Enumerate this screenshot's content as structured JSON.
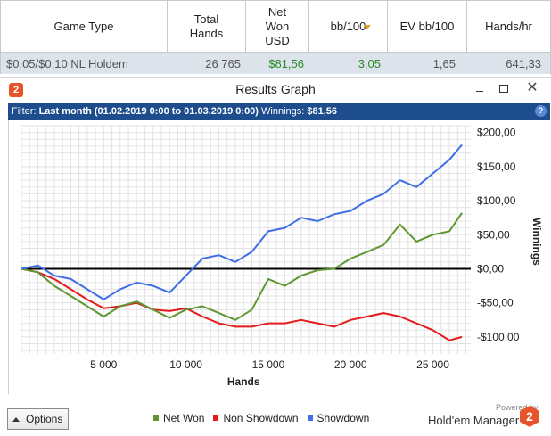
{
  "stats_table": {
    "headers": {
      "game_type": "Game Type",
      "total_hands": "Total Hands",
      "net_won": "Net Won USD",
      "bb100": "bb/100",
      "ev_bb100": "EV bb/100",
      "hands_hr": "Hands/hr"
    },
    "row": {
      "game_type": "$0,05/$0,10 NL Holdem",
      "total_hands": "26 765",
      "net_won": "$81,56",
      "bb100": "3,05",
      "ev_bb100": "1,65",
      "hands_hr": "641,33"
    }
  },
  "window": {
    "title": "Results Graph",
    "logo_text": "2",
    "close_glyph": "✕"
  },
  "filter": {
    "prefix": "Filter:",
    "value": "Last month (01.02.2019 0:00 to 01.03.2019 0:00)",
    "winnings_label": "Winnings:",
    "winnings_value": "$81,56",
    "help_glyph": "?"
  },
  "colors": {
    "net_won": "#5e9732",
    "non_showdown": "#e51a1a",
    "showdown": "#3f6ee8",
    "filter_bar": "#1d4d8c",
    "brand": "#e8542a"
  },
  "chart_data": {
    "type": "line",
    "xlabel": "Hands",
    "ylabel": "Winnings",
    "xlim": [
      0,
      27300
    ],
    "ylim": [
      -125,
      210
    ],
    "x_ticks": [
      5000,
      10000,
      15000,
      20000,
      25000
    ],
    "x_tick_labels": [
      "5 000",
      "10 000",
      "15 000",
      "20 000",
      "25 000"
    ],
    "y_ticks": [
      200,
      150,
      100,
      50,
      0,
      -50,
      -100
    ],
    "y_tick_labels": [
      "$200,00",
      "$150,00",
      "$100,00",
      "$50,00",
      "$0,00",
      "-$50,00",
      "-$100,00"
    ],
    "grid": true,
    "series": [
      {
        "name": "Net Won",
        "x": [
          0,
          1000,
          2000,
          3000,
          4000,
          5000,
          6000,
          7000,
          8000,
          9000,
          10000,
          11000,
          12000,
          13000,
          14000,
          15000,
          16000,
          17000,
          18000,
          19000,
          20000,
          21000,
          22000,
          23000,
          24000,
          25000,
          26000,
          26765
        ],
        "values": [
          0,
          -5,
          -25,
          -40,
          -55,
          -70,
          -55,
          -48,
          -60,
          -72,
          -60,
          -55,
          -65,
          -75,
          -60,
          -15,
          -25,
          -10,
          -2,
          0,
          15,
          25,
          35,
          65,
          40,
          50,
          55,
          82
        ]
      },
      {
        "name": "Non Showdown",
        "x": [
          0,
          1000,
          2000,
          3000,
          4000,
          5000,
          6000,
          7000,
          8000,
          9000,
          10000,
          11000,
          12000,
          13000,
          14000,
          15000,
          16000,
          17000,
          18000,
          19000,
          20000,
          21000,
          22000,
          23000,
          24000,
          25000,
          26000,
          26765
        ],
        "values": [
          0,
          -5,
          -15,
          -30,
          -45,
          -58,
          -55,
          -50,
          -60,
          -62,
          -58,
          -70,
          -80,
          -85,
          -85,
          -80,
          -80,
          -75,
          -80,
          -85,
          -75,
          -70,
          -65,
          -70,
          -80,
          -90,
          -105,
          -100
        ]
      },
      {
        "name": "Showdown",
        "x": [
          0,
          1000,
          2000,
          3000,
          4000,
          5000,
          6000,
          7000,
          8000,
          9000,
          10000,
          11000,
          12000,
          13000,
          14000,
          15000,
          16000,
          17000,
          18000,
          19000,
          20000,
          21000,
          22000,
          23000,
          24000,
          25000,
          26000,
          26765
        ],
        "values": [
          0,
          5,
          -10,
          -15,
          -30,
          -45,
          -30,
          -20,
          -25,
          -35,
          -10,
          15,
          20,
          10,
          25,
          55,
          60,
          75,
          70,
          80,
          85,
          100,
          110,
          130,
          120,
          140,
          160,
          182
        ]
      }
    ]
  },
  "legend": {
    "items": [
      {
        "label": "Net Won",
        "color": "#5e9732"
      },
      {
        "label": "Non Showdown",
        "color": "#e51a1a"
      },
      {
        "label": "Showdown",
        "color": "#3f6ee8"
      }
    ]
  },
  "bottom": {
    "options_label": "Options",
    "powered_by": "Powered by",
    "brand": "Hold'em Manager",
    "brand_logo": "2"
  }
}
